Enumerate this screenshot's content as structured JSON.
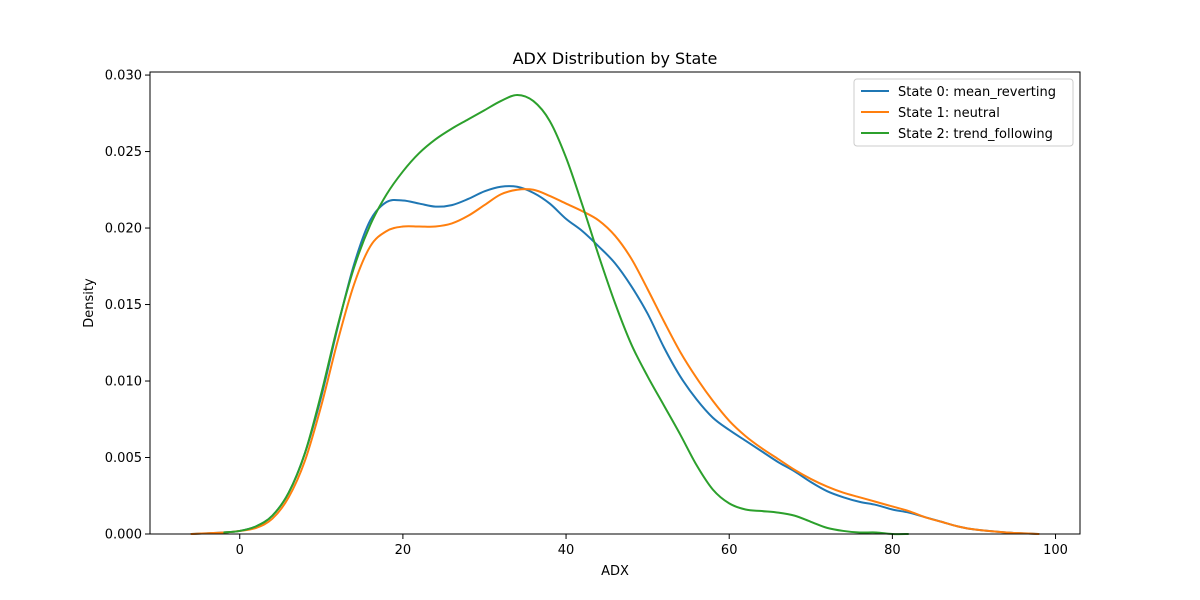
{
  "chart_data": {
    "type": "line",
    "title": "ADX Distribution by State",
    "xlabel": "ADX",
    "ylabel": "Density",
    "xlim": [
      -11,
      103
    ],
    "ylim": [
      0,
      0.0302
    ],
    "xticks": [
      0,
      20,
      40,
      60,
      80,
      100
    ],
    "yticks": [
      0.0,
      0.005,
      0.01,
      0.015,
      0.02,
      0.025,
      0.03
    ],
    "xtick_labels": [
      "0",
      "20",
      "40",
      "60",
      "80",
      "100"
    ],
    "ytick_labels": [
      "0.000",
      "0.005",
      "0.010",
      "0.015",
      "0.020",
      "0.025",
      "0.030"
    ],
    "legend_position": "top-right",
    "grid": false,
    "series": [
      {
        "name": "State 0: mean_reverting",
        "color": "#1f77b4",
        "x": [
          -6,
          -2,
          0,
          2,
          4,
          6,
          8,
          10,
          12,
          14,
          16,
          18,
          20,
          22,
          24,
          26,
          28,
          30,
          32,
          34,
          36,
          38,
          40,
          42,
          44,
          46,
          48,
          50,
          52,
          54,
          56,
          58,
          60,
          62,
          64,
          66,
          68,
          70,
          72,
          74,
          76,
          78,
          80,
          82,
          84,
          86,
          88,
          90,
          94,
          98
        ],
        "y": [
          0.0,
          0.0001,
          0.0002,
          0.0005,
          0.0012,
          0.0027,
          0.0053,
          0.009,
          0.0135,
          0.0176,
          0.0205,
          0.0217,
          0.0218,
          0.0216,
          0.0214,
          0.0215,
          0.0219,
          0.0224,
          0.0227,
          0.0227,
          0.0223,
          0.0216,
          0.0206,
          0.0198,
          0.0188,
          0.0177,
          0.0162,
          0.0144,
          0.0122,
          0.0103,
          0.0088,
          0.0076,
          0.0068,
          0.0061,
          0.0054,
          0.0047,
          0.0041,
          0.0034,
          0.0028,
          0.0024,
          0.0021,
          0.0019,
          0.0016,
          0.0014,
          0.0011,
          0.0008,
          0.0005,
          0.0003,
          0.0001,
          0.0
        ]
      },
      {
        "name": "State 1: neutral",
        "color": "#ff7f0e",
        "x": [
          -6,
          -2,
          0,
          2,
          4,
          6,
          8,
          10,
          12,
          14,
          16,
          18,
          20,
          22,
          24,
          26,
          28,
          30,
          32,
          34,
          36,
          38,
          40,
          42,
          44,
          46,
          48,
          50,
          52,
          54,
          56,
          58,
          60,
          62,
          64,
          66,
          68,
          70,
          72,
          74,
          76,
          78,
          80,
          82,
          84,
          86,
          88,
          90,
          94,
          98
        ],
        "y": [
          0.0,
          0.0001,
          0.0002,
          0.0004,
          0.001,
          0.0024,
          0.0048,
          0.0084,
          0.0126,
          0.0163,
          0.0188,
          0.0198,
          0.0201,
          0.0201,
          0.0201,
          0.0203,
          0.0208,
          0.0215,
          0.0222,
          0.0225,
          0.0225,
          0.0221,
          0.0216,
          0.0211,
          0.0205,
          0.0195,
          0.018,
          0.016,
          0.0139,
          0.0119,
          0.0102,
          0.0087,
          0.0074,
          0.0064,
          0.0056,
          0.0049,
          0.0042,
          0.0036,
          0.0031,
          0.0027,
          0.0024,
          0.0021,
          0.0018,
          0.0015,
          0.0011,
          0.0008,
          0.0005,
          0.0003,
          0.0001,
          0.0
        ]
      },
      {
        "name": "State 2: trend_following",
        "color": "#2ca02c",
        "x": [
          -2,
          0,
          2,
          4,
          6,
          8,
          10,
          12,
          14,
          16,
          18,
          20,
          22,
          24,
          26,
          28,
          30,
          32,
          34,
          36,
          38,
          40,
          42,
          44,
          46,
          48,
          50,
          52,
          54,
          56,
          58,
          60,
          62,
          64,
          66,
          68,
          70,
          72,
          74,
          76,
          78,
          80,
          82
        ],
        "y": [
          0.0001,
          0.0002,
          0.0005,
          0.0012,
          0.0027,
          0.0053,
          0.0092,
          0.0136,
          0.0174,
          0.0202,
          0.0222,
          0.0237,
          0.0249,
          0.0258,
          0.0265,
          0.0271,
          0.0277,
          0.0283,
          0.0287,
          0.0283,
          0.027,
          0.0246,
          0.0215,
          0.0182,
          0.0151,
          0.0124,
          0.0103,
          0.0084,
          0.0065,
          0.0045,
          0.0029,
          0.002,
          0.0016,
          0.0015,
          0.0014,
          0.0012,
          0.0008,
          0.0004,
          0.0002,
          0.0001,
          0.0001,
          0.0,
          0.0
        ]
      }
    ]
  }
}
